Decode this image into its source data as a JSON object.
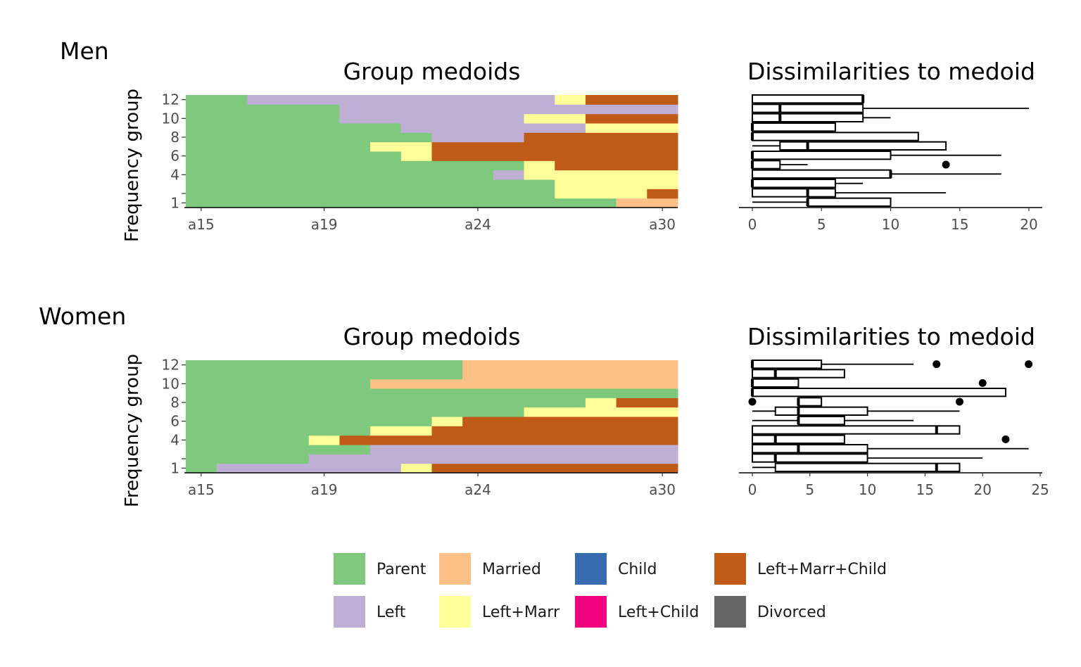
{
  "legend": [
    {
      "label": "Parent",
      "color": "#7FC97F"
    },
    {
      "label": "Left",
      "color": "#BEAED4"
    },
    {
      "label": "Married",
      "color": "#FDC086"
    },
    {
      "label": "Left+Marr",
      "color": "#FFFF99"
    },
    {
      "label": "Child",
      "color": "#386CB0"
    },
    {
      "label": "Left+Child",
      "color": "#F0027F"
    },
    {
      "label": "Left+Marr+Child",
      "color": "#BF5B17"
    },
    {
      "label": "Divorced",
      "color": "#666666"
    }
  ],
  "chart_data": [
    {
      "panel": "Men",
      "group_label": "Men",
      "medoids": {
        "type": "heatmap",
        "title": "Group medoids",
        "ylabel": "Frequency group",
        "x_ticks": [
          "a15",
          "a19",
          "a24",
          "a30"
        ],
        "y_ticks": [
          "1",
          "",
          "4",
          "6",
          "8",
          "10",
          "12"
        ],
        "positions": [
          "a15",
          "a16",
          "a17",
          "a18",
          "a19",
          "a20",
          "a21",
          "a22",
          "a23",
          "a24",
          "a25",
          "a26",
          "a27",
          "a28",
          "a29",
          "a30"
        ],
        "rows": [
          {
            "group": "1",
            "runs": [
              [
                "Parent",
                14
              ],
              [
                "Married",
                2
              ]
            ]
          },
          {
            "group": "2",
            "runs": [
              [
                "Parent",
                12
              ],
              [
                "Left+Marr",
                3
              ],
              [
                "Left+Marr+Child",
                1
              ]
            ]
          },
          {
            "group": "3",
            "runs": [
              [
                "Parent",
                12
              ],
              [
                "Left+Marr",
                4
              ]
            ]
          },
          {
            "group": "4",
            "runs": [
              [
                "Parent",
                10
              ],
              [
                "Left",
                1
              ],
              [
                "Left+Marr",
                1
              ],
              [
                "Left+Marr",
                4
              ]
            ]
          },
          {
            "group": "5",
            "runs": [
              [
                "Parent",
                11
              ],
              [
                "Left+Marr",
                1
              ],
              [
                "Left+Marr+Child",
                4
              ]
            ]
          },
          {
            "group": "6",
            "runs": [
              [
                "Parent",
                7
              ],
              [
                "Left+Marr",
                1
              ],
              [
                "Left+Marr+Child",
                8
              ]
            ]
          },
          {
            "group": "7",
            "runs": [
              [
                "Parent",
                6
              ],
              [
                "Left+Marr",
                2
              ],
              [
                "Left+Marr+Child",
                8
              ]
            ]
          },
          {
            "group": "8",
            "runs": [
              [
                "Parent",
                8
              ],
              [
                "Left",
                3
              ],
              [
                "Left+Marr+Child",
                5
              ]
            ]
          },
          {
            "group": "9",
            "runs": [
              [
                "Parent",
                7
              ],
              [
                "Left",
                6
              ],
              [
                "Left+Marr",
                3
              ]
            ]
          },
          {
            "group": "10",
            "runs": [
              [
                "Parent",
                5
              ],
              [
                "Left",
                6
              ],
              [
                "Left+Marr",
                2
              ],
              [
                "Left+Marr+Child",
                3
              ]
            ]
          },
          {
            "group": "11",
            "runs": [
              [
                "Parent",
                5
              ],
              [
                "Left",
                11
              ]
            ]
          },
          {
            "group": "12",
            "runs": [
              [
                "Parent",
                2
              ],
              [
                "Left",
                10
              ],
              [
                "Left+Marr",
                1
              ],
              [
                "Left+Marr+Child",
                3
              ]
            ]
          }
        ]
      },
      "dissimilarities": {
        "type": "boxplot",
        "title": "Dissimilarities to medoid",
        "x_ticks": [
          "0",
          "5",
          "10",
          "15",
          "20"
        ],
        "xlim": [
          0,
          20
        ],
        "boxes": [
          {
            "group": "1",
            "q1": 4,
            "median": 4,
            "q3": 10,
            "wmin": 0,
            "wmax": 10,
            "outliers": []
          },
          {
            "group": "2",
            "q1": 0,
            "median": 4,
            "q3": 6,
            "wmin": 0,
            "wmax": 14,
            "outliers": []
          },
          {
            "group": "3",
            "q1": 0,
            "median": 0,
            "q3": 6,
            "wmin": 0,
            "wmax": 8,
            "outliers": []
          },
          {
            "group": "4",
            "q1": 0,
            "median": 10,
            "q3": 10,
            "wmin": 0,
            "wmax": 18,
            "outliers": []
          },
          {
            "group": "5",
            "q1": 0,
            "median": 0,
            "q3": 2,
            "wmin": 0,
            "wmax": 4,
            "outliers": [
              14
            ]
          },
          {
            "group": "6",
            "q1": 0,
            "median": 0,
            "q3": 10,
            "wmin": 0,
            "wmax": 18,
            "outliers": []
          },
          {
            "group": "7",
            "q1": 2,
            "median": 4,
            "q3": 14,
            "wmin": 0,
            "wmax": 14,
            "outliers": []
          },
          {
            "group": "8",
            "q1": 0,
            "median": 0,
            "q3": 12,
            "wmin": 0,
            "wmax": 12,
            "outliers": []
          },
          {
            "group": "9",
            "q1": 0,
            "median": 0,
            "q3": 6,
            "wmin": 0,
            "wmax": 6,
            "outliers": []
          },
          {
            "group": "10",
            "q1": 0,
            "median": 2,
            "q3": 8,
            "wmin": 0,
            "wmax": 10,
            "outliers": []
          },
          {
            "group": "11",
            "q1": 0,
            "median": 2,
            "q3": 8,
            "wmin": 0,
            "wmax": 20,
            "outliers": []
          },
          {
            "group": "12",
            "q1": 0,
            "median": 8,
            "q3": 8,
            "wmin": 0,
            "wmax": 8,
            "outliers": []
          }
        ]
      }
    },
    {
      "panel": "Women",
      "group_label": "Women",
      "medoids": {
        "type": "heatmap",
        "title": "Group medoids",
        "ylabel": "Frequency group",
        "x_ticks": [
          "a15",
          "a19",
          "a24",
          "a30"
        ],
        "y_ticks": [
          "1",
          "",
          "4",
          "6",
          "8",
          "10",
          "12"
        ],
        "positions": [
          "a15",
          "a16",
          "a17",
          "a18",
          "a19",
          "a20",
          "a21",
          "a22",
          "a23",
          "a24",
          "a25",
          "a26",
          "a27",
          "a28",
          "a29",
          "a30"
        ],
        "rows": [
          {
            "group": "1",
            "runs": [
              [
                "Parent",
                1
              ],
              [
                "Left",
                6
              ],
              [
                "Left+Marr",
                1
              ],
              [
                "Left+Marr+Child",
                8
              ]
            ]
          },
          {
            "group": "2",
            "runs": [
              [
                "Parent",
                4
              ],
              [
                "Left",
                12
              ]
            ]
          },
          {
            "group": "3",
            "runs": [
              [
                "Parent",
                6
              ],
              [
                "Left",
                10
              ]
            ]
          },
          {
            "group": "4",
            "runs": [
              [
                "Parent",
                4
              ],
              [
                "Left+Marr",
                1
              ],
              [
                "Left+Marr+Child",
                11
              ]
            ]
          },
          {
            "group": "5",
            "runs": [
              [
                "Parent",
                6
              ],
              [
                "Left+Marr",
                2
              ],
              [
                "Left+Marr+Child",
                8
              ]
            ]
          },
          {
            "group": "6",
            "runs": [
              [
                "Parent",
                8
              ],
              [
                "Left+Marr",
                1
              ],
              [
                "Left+Marr+Child",
                7
              ]
            ]
          },
          {
            "group": "7",
            "runs": [
              [
                "Parent",
                11
              ],
              [
                "Left+Marr",
                5
              ]
            ]
          },
          {
            "group": "8",
            "runs": [
              [
                "Parent",
                13
              ],
              [
                "Left+Marr",
                1
              ],
              [
                "Left+Marr+Child",
                2
              ]
            ]
          },
          {
            "group": "9",
            "runs": [
              [
                "Parent",
                16
              ]
            ]
          },
          {
            "group": "10",
            "runs": [
              [
                "Parent",
                6
              ],
              [
                "Married",
                10
              ]
            ]
          },
          {
            "group": "11",
            "runs": [
              [
                "Parent",
                9
              ],
              [
                "Married",
                7
              ]
            ]
          },
          {
            "group": "12",
            "runs": [
              [
                "Parent",
                9
              ],
              [
                "Married",
                7
              ]
            ]
          }
        ]
      },
      "dissimilarities": {
        "type": "boxplot",
        "title": "Dissimilarities to medoid",
        "x_ticks": [
          "0",
          "5",
          "10",
          "15",
          "20",
          "25"
        ],
        "xlim": [
          0,
          25
        ],
        "boxes": [
          {
            "group": "1",
            "q1": 2,
            "median": 16,
            "q3": 18,
            "wmin": 0,
            "wmax": 18,
            "outliers": []
          },
          {
            "group": "2",
            "q1": 0,
            "median": 2,
            "q3": 10,
            "wmin": 0,
            "wmax": 20,
            "outliers": []
          },
          {
            "group": "3",
            "q1": 0,
            "median": 4,
            "q3": 10,
            "wmin": 0,
            "wmax": 24,
            "outliers": []
          },
          {
            "group": "4",
            "q1": 0,
            "median": 2,
            "q3": 8,
            "wmin": 0,
            "wmax": 8,
            "outliers": [
              22
            ]
          },
          {
            "group": "5",
            "q1": 0,
            "median": 16,
            "q3": 18,
            "wmin": 0,
            "wmax": 18,
            "outliers": []
          },
          {
            "group": "6",
            "q1": 4,
            "median": 4,
            "q3": 8,
            "wmin": 0,
            "wmax": 14,
            "outliers": []
          },
          {
            "group": "7",
            "q1": 2,
            "median": 4,
            "q3": 10,
            "wmin": 0,
            "wmax": 18,
            "outliers": []
          },
          {
            "group": "8",
            "q1": 4,
            "median": 4,
            "q3": 6,
            "wmin": 4,
            "wmax": 6,
            "outliers": [
              0,
              18
            ]
          },
          {
            "group": "9",
            "q1": 0,
            "median": 0,
            "q3": 22,
            "wmin": 0,
            "wmax": 22,
            "outliers": []
          },
          {
            "group": "10",
            "q1": 0,
            "median": 0,
            "q3": 4,
            "wmin": 0,
            "wmax": 4,
            "outliers": [
              20
            ]
          },
          {
            "group": "11",
            "q1": 0,
            "median": 2,
            "q3": 8,
            "wmin": 0,
            "wmax": 8,
            "outliers": []
          },
          {
            "group": "12",
            "q1": 0,
            "median": 0,
            "q3": 6,
            "wmin": 0,
            "wmax": 14,
            "outliers": [
              16,
              24
            ]
          }
        ]
      }
    }
  ]
}
